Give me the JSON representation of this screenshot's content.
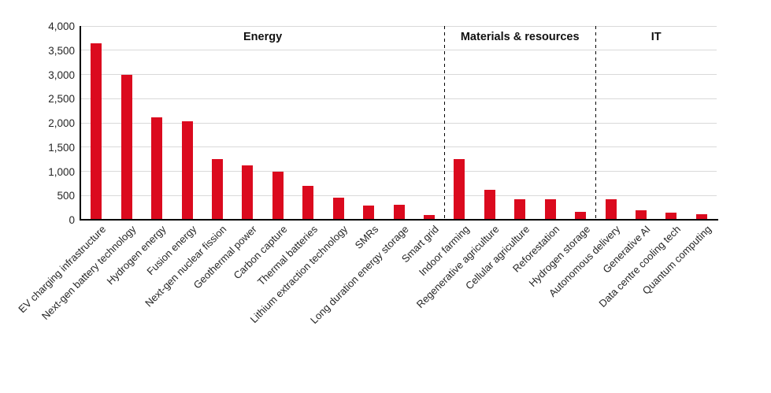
{
  "chart_data": {
    "type": "bar",
    "title": "",
    "xlabel": "",
    "ylabel": "",
    "categories": [
      "EV charging infrastructure",
      "Next-gen battery technology",
      "Hydrogen energy",
      "Fusion energy",
      "Next-gen nuclear fission",
      "Geothermal power",
      "Carbon capture",
      "Thermal batteries",
      "Lithium extraction technology",
      "SMRs",
      "Long duration energy storage",
      "Smart grid",
      "Indoor farming",
      "Regenerative agriculture",
      "Cellular agriculture",
      "Reforestation",
      "Hydrogen storage",
      "Autonomous delivery",
      "Generative AI",
      "Data centre cooling tech",
      "Quantum computing"
    ],
    "values": [
      3650,
      3000,
      2120,
      2030,
      1260,
      1120,
      1000,
      700,
      460,
      300,
      310,
      100,
      1250,
      620,
      420,
      420,
      170,
      430,
      190,
      150,
      120
    ],
    "ylim": [
      0,
      4000
    ],
    "yticks": [
      0,
      500,
      1000,
      1500,
      2000,
      2500,
      3000,
      3500,
      4000
    ],
    "ytick_labels": [
      "0",
      "500",
      "1,000",
      "1,500",
      "2,000",
      "2,500",
      "3,000",
      "3,500",
      "4,000"
    ],
    "sections": [
      {
        "label": "Energy",
        "start": 0,
        "end": 12
      },
      {
        "label": "Materials & resources",
        "start": 12,
        "end": 17
      },
      {
        "label": "IT",
        "start": 17,
        "end": 21
      }
    ],
    "grid": true,
    "legend": false,
    "x_label_rotation_deg": -45,
    "colors": {
      "bar": "#db0a1e",
      "gridline": "#d9d9d9",
      "axis": "#000000",
      "separator": "#000000",
      "tick_text": "#262626",
      "section_text": "#111111",
      "background": "#ffffff"
    }
  }
}
